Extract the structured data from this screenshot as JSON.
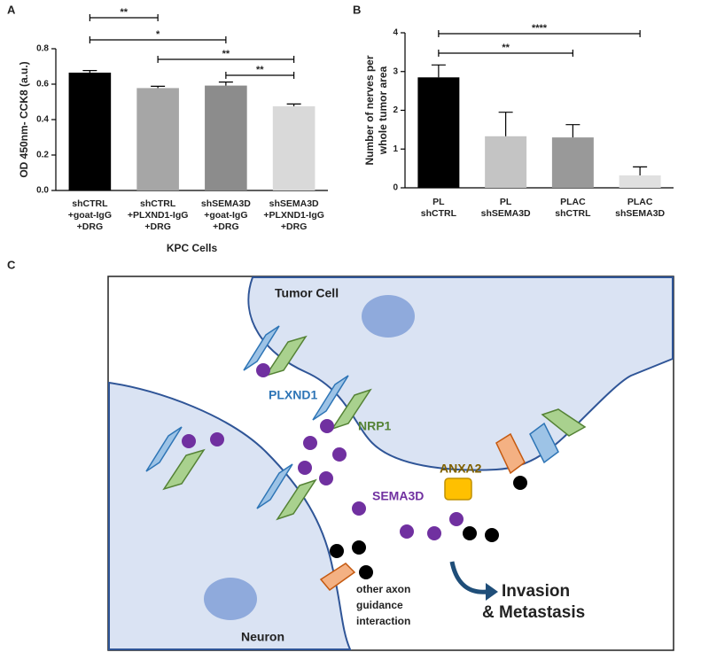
{
  "panel_labels": [
    "A",
    "B",
    "C"
  ],
  "chart_data": [
    {
      "type": "bar",
      "ylabel": "OD 450nm- CCK8 (a.u.)",
      "xlabel": "KPC Cells",
      "categories": [
        [
          "shCTRL",
          "+goat-IgG",
          "+DRG"
        ],
        [
          "shCTRL",
          "+PLXND1-IgG",
          "+DRG"
        ],
        [
          "shSEMA3D",
          "+goat-IgG",
          "+DRG"
        ],
        [
          "shSEMA3D",
          "+PLXND1-IgG",
          "+DRG"
        ]
      ],
      "values": [
        0.665,
        0.578,
        0.592,
        0.475
      ],
      "errors": [
        0.012,
        0.01,
        0.02,
        0.013
      ],
      "colors": [
        "#000000",
        "#a6a6a6",
        "#8c8c8c",
        "#d9d9d9"
      ],
      "ylim": [
        0,
        0.8
      ],
      "yticks": [
        {
          "value": 0,
          "label": "0.0"
        },
        0.2,
        0.4,
        0.6,
        0.8
      ],
      "significance": [
        {
          "label": "**",
          "pair": [
            0,
            1
          ]
        },
        {
          "label": "*",
          "pair": [
            0,
            2
          ]
        },
        {
          "label": "**",
          "pair": [
            1,
            3
          ]
        },
        {
          "label": "**",
          "pair": [
            2,
            3
          ]
        }
      ]
    },
    {
      "type": "bar",
      "ylabel": [
        "Number of nerves per",
        "whole tumor area"
      ],
      "categories": [
        [
          "PL",
          "shCTRL"
        ],
        [
          "PL",
          "shSEMA3D"
        ],
        [
          "PLAC",
          "shCTRL"
        ],
        [
          "PLAC",
          "shSEMA3D"
        ]
      ],
      "values": [
        2.85,
        1.33,
        1.3,
        0.32
      ],
      "errors": [
        0.32,
        0.62,
        0.33,
        0.22
      ],
      "colors": [
        "#000000",
        "#c4c4c4",
        "#999999",
        "#e0e0e0"
      ],
      "ylim": [
        0,
        4
      ],
      "yticks": [
        0,
        1,
        2,
        3,
        4
      ],
      "significance": [
        {
          "label": "****",
          "pair": [
            0,
            3
          ]
        },
        {
          "label": "**",
          "pair": [
            0,
            2
          ]
        }
      ]
    }
  ],
  "diagram": {
    "tumor_cell": "Tumor Cell",
    "neuron": "Neuron",
    "plxnd1": "PLXND1",
    "nrp1": "NRP1",
    "anxa2": "ANXA2",
    "sema3d": "SEMA3D",
    "other": [
      "other axon",
      "guidance",
      "interaction"
    ],
    "outcome": [
      "Invasion",
      "& Metastasis"
    ]
  }
}
